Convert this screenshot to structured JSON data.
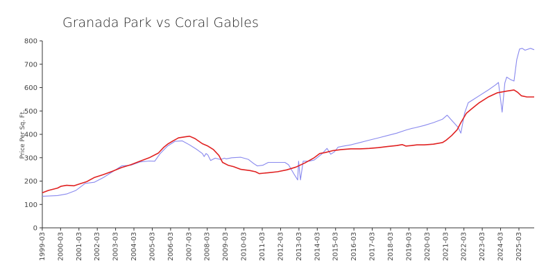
{
  "chart_data": {
    "type": "line",
    "title": "Granada Park vs Coral Gables",
    "xlabel": "",
    "ylabel": "Price Per Sq. Ft.",
    "ylim": [
      0,
      800
    ],
    "yticks": [
      "0",
      "100",
      "200",
      "300",
      "400",
      "500",
      "600",
      "700",
      "800"
    ],
    "xticks": [
      "1999-03",
      "2000-03",
      "2001-03",
      "2002-03",
      "2003-03",
      "2004-03",
      "2005-03",
      "2006-03",
      "2007-03",
      "2008-03",
      "2009-03",
      "2010-03",
      "2011-03",
      "2012-03",
      "2013-03",
      "2014-03",
      "2015-03",
      "2016-03",
      "2017-03",
      "2018-03",
      "2019-03",
      "2020-03",
      "2021-03",
      "2022-03",
      "2023-03",
      "2024-03",
      "2025-03"
    ],
    "grid": false,
    "colors": {
      "granada_park": "#8888ee",
      "coral_gables": "#e02020"
    },
    "series": [
      {
        "key": "granada_park",
        "color": "#8888ee",
        "points": [
          [
            1999.17,
            135
          ],
          [
            2000.0,
            138
          ],
          [
            2000.5,
            145
          ],
          [
            2001.0,
            160
          ],
          [
            2001.5,
            190
          ],
          [
            2002.0,
            195
          ],
          [
            2002.5,
            215
          ],
          [
            2003.0,
            240
          ],
          [
            2003.5,
            265
          ],
          [
            2004.0,
            268
          ],
          [
            2004.5,
            282
          ],
          [
            2005.0,
            286
          ],
          [
            2005.3,
            285
          ],
          [
            2005.6,
            318
          ],
          [
            2006.0,
            350
          ],
          [
            2006.4,
            370
          ],
          [
            2006.8,
            372
          ],
          [
            2007.2,
            355
          ],
          [
            2007.6,
            335
          ],
          [
            2007.9,
            318
          ],
          [
            2008.0,
            305
          ],
          [
            2008.1,
            318
          ],
          [
            2008.2,
            312
          ],
          [
            2008.35,
            288
          ],
          [
            2008.6,
            298
          ],
          [
            2008.9,
            292
          ],
          [
            2009.1,
            298
          ],
          [
            2009.2,
            295
          ],
          [
            2009.5,
            300
          ],
          [
            2010.0,
            302
          ],
          [
            2010.4,
            293
          ],
          [
            2010.7,
            275
          ],
          [
            2010.9,
            265
          ],
          [
            2011.2,
            268
          ],
          [
            2011.5,
            280
          ],
          [
            2012.0,
            280
          ],
          [
            2012.4,
            280
          ],
          [
            2012.6,
            270
          ],
          [
            2012.9,
            230
          ],
          [
            2013.1,
            205
          ],
          [
            2013.15,
            285
          ],
          [
            2013.25,
            205
          ],
          [
            2013.4,
            285
          ],
          [
            2013.7,
            285
          ],
          [
            2014.0,
            290
          ],
          [
            2014.4,
            315
          ],
          [
            2014.7,
            340
          ],
          [
            2014.9,
            315
          ],
          [
            2015.1,
            325
          ],
          [
            2015.3,
            345
          ],
          [
            2015.6,
            350
          ],
          [
            2016.0,
            355
          ],
          [
            2016.5,
            365
          ],
          [
            2017.0,
            375
          ],
          [
            2017.5,
            385
          ],
          [
            2018.0,
            395
          ],
          [
            2018.5,
            405
          ],
          [
            2019.0,
            418
          ],
          [
            2019.3,
            425
          ],
          [
            2019.5,
            428
          ],
          [
            2020.0,
            438
          ],
          [
            2020.5,
            450
          ],
          [
            2021.0,
            465
          ],
          [
            2021.25,
            482
          ],
          [
            2021.5,
            460
          ],
          [
            2021.85,
            430
          ],
          [
            2022.0,
            405
          ],
          [
            2022.2,
            490
          ],
          [
            2022.4,
            535
          ],
          [
            2022.7,
            550
          ],
          [
            2023.0,
            565
          ],
          [
            2023.5,
            590
          ],
          [
            2023.9,
            612
          ],
          [
            2024.05,
            622
          ],
          [
            2024.25,
            495
          ],
          [
            2024.4,
            620
          ],
          [
            2024.5,
            645
          ],
          [
            2024.7,
            635
          ],
          [
            2024.9,
            628
          ],
          [
            2025.05,
            720
          ],
          [
            2025.2,
            765
          ],
          [
            2025.35,
            768
          ],
          [
            2025.5,
            760
          ],
          [
            2025.8,
            768
          ],
          [
            2026.0,
            762
          ]
        ]
      },
      {
        "key": "coral_gables",
        "color": "#e02020",
        "points": [
          [
            1999.17,
            150
          ],
          [
            1999.5,
            160
          ],
          [
            2000.0,
            170
          ],
          [
            2000.2,
            178
          ],
          [
            2000.5,
            182
          ],
          [
            2000.9,
            180
          ],
          [
            2001.2,
            188
          ],
          [
            2001.6,
            198
          ],
          [
            2002.0,
            215
          ],
          [
            2002.5,
            228
          ],
          [
            2003.0,
            242
          ],
          [
            2003.5,
            258
          ],
          [
            2004.0,
            270
          ],
          [
            2004.5,
            285
          ],
          [
            2005.0,
            300
          ],
          [
            2005.5,
            320
          ],
          [
            2005.8,
            345
          ],
          [
            2006.0,
            358
          ],
          [
            2006.3,
            372
          ],
          [
            2006.6,
            385
          ],
          [
            2007.0,
            390
          ],
          [
            2007.2,
            392
          ],
          [
            2007.5,
            382
          ],
          [
            2007.9,
            360
          ],
          [
            2008.2,
            350
          ],
          [
            2008.5,
            335
          ],
          [
            2008.8,
            310
          ],
          [
            2009.0,
            280
          ],
          [
            2009.3,
            268
          ],
          [
            2009.6,
            262
          ],
          [
            2010.0,
            250
          ],
          [
            2010.5,
            245
          ],
          [
            2010.8,
            240
          ],
          [
            2011.0,
            232
          ],
          [
            2011.5,
            236
          ],
          [
            2012.0,
            240
          ],
          [
            2012.5,
            248
          ],
          [
            2013.0,
            260
          ],
          [
            2013.5,
            278
          ],
          [
            2014.0,
            300
          ],
          [
            2014.3,
            318
          ],
          [
            2014.6,
            322
          ],
          [
            2015.0,
            330
          ],
          [
            2015.5,
            335
          ],
          [
            2016.0,
            338
          ],
          [
            2016.5,
            338
          ],
          [
            2017.0,
            340
          ],
          [
            2017.5,
            343
          ],
          [
            2018.0,
            348
          ],
          [
            2018.5,
            352
          ],
          [
            2018.8,
            356
          ],
          [
            2019.0,
            350
          ],
          [
            2019.3,
            352
          ],
          [
            2019.6,
            355
          ],
          [
            2020.0,
            355
          ],
          [
            2020.5,
            358
          ],
          [
            2021.0,
            365
          ],
          [
            2021.2,
            375
          ],
          [
            2021.5,
            395
          ],
          [
            2021.8,
            420
          ],
          [
            2022.0,
            450
          ],
          [
            2022.3,
            490
          ],
          [
            2022.6,
            510
          ],
          [
            2023.0,
            535
          ],
          [
            2023.5,
            560
          ],
          [
            2024.0,
            578
          ],
          [
            2024.5,
            585
          ],
          [
            2024.9,
            590
          ],
          [
            2025.1,
            580
          ],
          [
            2025.3,
            565
          ],
          [
            2025.6,
            560
          ],
          [
            2026.0,
            560
          ]
        ]
      }
    ]
  }
}
